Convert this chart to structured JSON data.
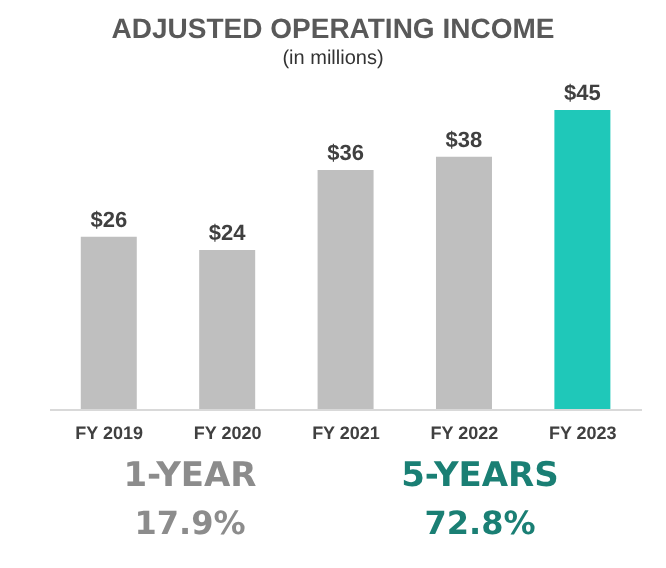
{
  "chart_data": {
    "type": "bar",
    "title": "ADJUSTED OPERATING INCOME",
    "subtitle": "(in millions)",
    "categories": [
      "FY 2019",
      "FY 2020",
      "FY 2021",
      "FY 2022",
      "FY 2023"
    ],
    "values": [
      26,
      24,
      36,
      38,
      45
    ],
    "colors": [
      "#bfbfbf",
      "#bfbfbf",
      "#bfbfbf",
      "#bfbfbf",
      "#1fc8b9"
    ],
    "value_labels": [
      "$26",
      "$24",
      "$36",
      "$38",
      "$45"
    ],
    "annotations": [
      "1-YEAR",
      "17.9%",
      "5-YEARS",
      "72.8%"
    ],
    "grid": false,
    "legend": false
  }
}
